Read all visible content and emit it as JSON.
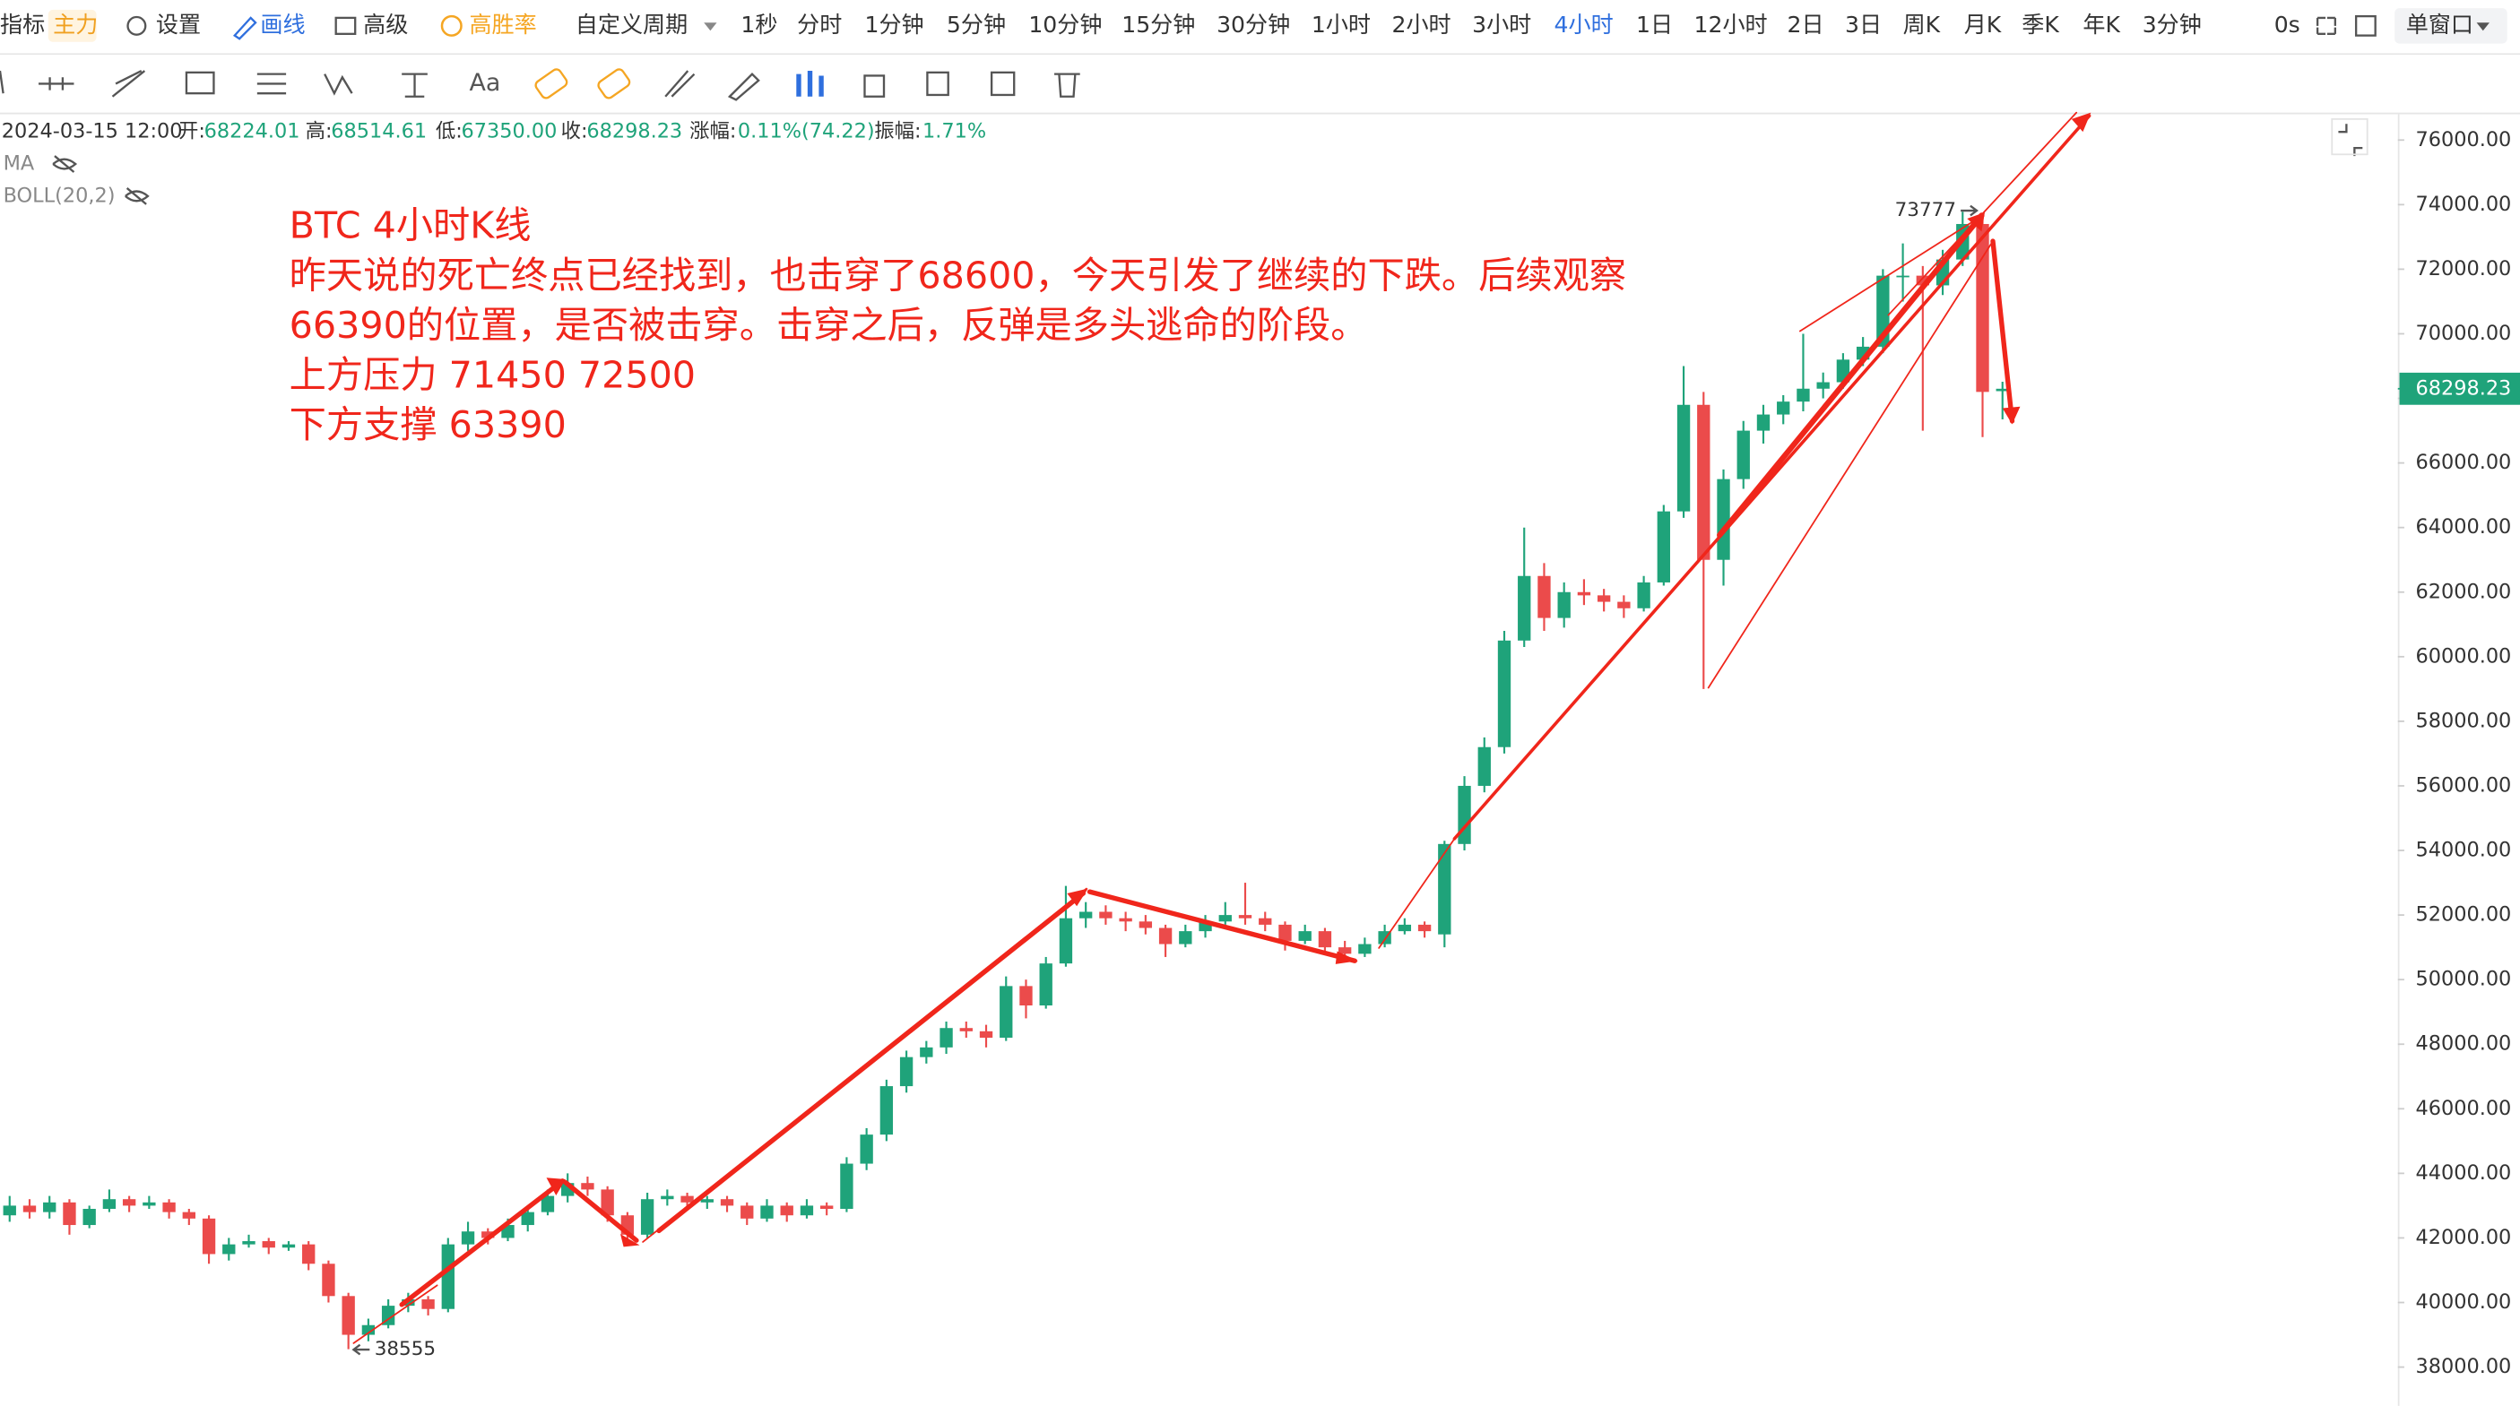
{
  "toolbar": {
    "indicator": "指标",
    "main": "主力",
    "settings": "设置",
    "draw": "画线",
    "advanced": "高级",
    "win_rate": "高胜率",
    "custom_period": "自定义周期",
    "periods": [
      "1秒",
      "分时",
      "1分钟",
      "5分钟",
      "10分钟",
      "15分钟",
      "30分钟",
      "1小时",
      "2小时",
      "3小时",
      "4小时",
      "1日",
      "12小时",
      "2日",
      "3日",
      "周K",
      "月K",
      "季K",
      "年K",
      "3分钟"
    ],
    "active_period": 10,
    "refresh": "0s",
    "window": "单窗口",
    "text_tool": "Aa"
  },
  "info": {
    "time": "2024-03-15 12:00",
    "open_label": "开:",
    "open": "68224.01",
    "high_label": "高:",
    "high": "68514.61",
    "low_label": "低:",
    "low": "67350.00",
    "close_label": "收:",
    "close": "68298.23",
    "change_label": "涨幅:",
    "change": "0.11%(74.22)",
    "amplitude_label": "振幅:",
    "amplitude": "1.71%"
  },
  "indicators": [
    "MA",
    "BOLL(20,2)"
  ],
  "chart_data": {
    "type": "candlestick",
    "up_color": "#1fa37a",
    "down_color": "#eb4b4b",
    "grid": false,
    "note": [
      "BTC 4小时K线",
      "昨天说的死亡终点已经找到，也击穿了68600，今天引发了继续的下跌。后续观察",
      "66390的位置，是否被击穿。击穿之后，反弹是多头逃命的阶段。",
      "上方压力 71450  72500",
      "下方支撑 63390"
    ],
    "ylim": [
      36800,
      76750
    ],
    "yticks": [
      {
        "value": 38000,
        "label": "38000.00"
      },
      {
        "value": 40000,
        "label": "40000.00"
      },
      {
        "value": 42000,
        "label": "42000.00"
      },
      {
        "value": 44000,
        "label": "44000.00"
      },
      {
        "value": 46000,
        "label": "46000.00"
      },
      {
        "value": 48000,
        "label": "48000.00"
      },
      {
        "value": 50000,
        "label": "50000.00"
      },
      {
        "value": 52000,
        "label": "52000.00"
      },
      {
        "value": 54000,
        "label": "54000.00"
      },
      {
        "value": 56000,
        "label": "56000.00"
      },
      {
        "value": 58000,
        "label": "58000.00"
      },
      {
        "value": 60000,
        "label": "60000.00"
      },
      {
        "value": 62000,
        "label": "62000.00"
      },
      {
        "value": 64000,
        "label": "64000.00"
      },
      {
        "value": 66000,
        "label": "66000.00"
      },
      {
        "value": 68000,
        "label": "68000.00"
      },
      {
        "value": 70000,
        "label": "70000.00"
      },
      {
        "value": 72000,
        "label": "72000.00"
      },
      {
        "value": 74000,
        "label": "74000.00"
      },
      {
        "value": 76000,
        "label": "76000.00"
      }
    ],
    "ohlc": [
      [
        42700,
        43300,
        42500,
        43000
      ],
      [
        43000,
        43200,
        42600,
        42800
      ],
      [
        42800,
        43300,
        42600,
        43100
      ],
      [
        43100,
        43200,
        42100,
        42400
      ],
      [
        42400,
        43000,
        42300,
        42900
      ],
      [
        42900,
        43500,
        42800,
        43200
      ],
      [
        43200,
        43300,
        42800,
        43000
      ],
      [
        43000,
        43300,
        42900,
        43100
      ],
      [
        43100,
        43200,
        42600,
        42800
      ],
      [
        42800,
        42900,
        42400,
        42600
      ],
      [
        42600,
        42700,
        41200,
        41500
      ],
      [
        41500,
        42000,
        41300,
        41800
      ],
      [
        41800,
        42100,
        41700,
        41900
      ],
      [
        41900,
        42000,
        41500,
        41700
      ],
      [
        41700,
        41900,
        41600,
        41800
      ],
      [
        41800,
        41900,
        41000,
        41200
      ],
      [
        41200,
        41300,
        40000,
        40200
      ],
      [
        40200,
        40300,
        38555,
        39000
      ],
      [
        39000,
        39500,
        38800,
        39300
      ],
      [
        39300,
        40100,
        39200,
        39900
      ],
      [
        39900,
        40300,
        39700,
        40100
      ],
      [
        40100,
        40200,
        39600,
        39800
      ],
      [
        39800,
        42000,
        39700,
        41800
      ],
      [
        41800,
        42500,
        41600,
        42200
      ],
      [
        42200,
        42300,
        41800,
        42000
      ],
      [
        42000,
        42600,
        41900,
        42400
      ],
      [
        42400,
        43000,
        42200,
        42800
      ],
      [
        42800,
        43500,
        42700,
        43300
      ],
      [
        43300,
        44000,
        43100,
        43700
      ],
      [
        43700,
        43900,
        43300,
        43500
      ],
      [
        43500,
        43600,
        42500,
        42700
      ],
      [
        42700,
        42800,
        41900,
        42100
      ],
      [
        42100,
        43400,
        42000,
        43200
      ],
      [
        43200,
        43500,
        43000,
        43300
      ],
      [
        43300,
        43400,
        42900,
        43100
      ],
      [
        43100,
        43300,
        42900,
        43200
      ],
      [
        43200,
        43300,
        42800,
        43000
      ],
      [
        43000,
        43100,
        42400,
        42600
      ],
      [
        42600,
        43200,
        42500,
        43000
      ],
      [
        43000,
        43100,
        42500,
        42700
      ],
      [
        42700,
        43200,
        42600,
        43000
      ],
      [
        43000,
        43100,
        42700,
        42900
      ],
      [
        42900,
        44500,
        42800,
        44300
      ],
      [
        44300,
        45400,
        44100,
        45200
      ],
      [
        45200,
        46900,
        45000,
        46700
      ],
      [
        46700,
        47800,
        46500,
        47600
      ],
      [
        47600,
        48100,
        47400,
        47900
      ],
      [
        47900,
        48700,
        47700,
        48500
      ],
      [
        48500,
        48700,
        48200,
        48400
      ],
      [
        48400,
        48600,
        47900,
        48200
      ],
      [
        48200,
        50100,
        48100,
        49800
      ],
      [
        49800,
        50000,
        48800,
        49200
      ],
      [
        49200,
        50700,
        49100,
        50500
      ],
      [
        50500,
        52900,
        50400,
        51900
      ],
      [
        51900,
        52400,
        51600,
        52100
      ],
      [
        52100,
        52300,
        51700,
        51900
      ],
      [
        51900,
        52100,
        51500,
        51800
      ],
      [
        51800,
        52000,
        51400,
        51600
      ],
      [
        51600,
        51700,
        50700,
        51100
      ],
      [
        51100,
        51700,
        51000,
        51500
      ],
      [
        51500,
        52000,
        51300,
        51800
      ],
      [
        51800,
        52400,
        51700,
        52000
      ],
      [
        52000,
        53000,
        51700,
        51900
      ],
      [
        51900,
        52100,
        51500,
        51700
      ],
      [
        51700,
        51800,
        50900,
        51200
      ],
      [
        51200,
        51700,
        51100,
        51500
      ],
      [
        51500,
        51600,
        50800,
        51000
      ],
      [
        51000,
        51200,
        50600,
        50800
      ],
      [
        50800,
        51300,
        50700,
        51100
      ],
      [
        51100,
        51700,
        51000,
        51500
      ],
      [
        51500,
        51900,
        51400,
        51700
      ],
      [
        51700,
        51800,
        51300,
        51500
      ],
      [
        51400,
        54300,
        51000,
        54200
      ],
      [
        54200,
        56300,
        54000,
        56000
      ],
      [
        56000,
        57500,
        55800,
        57200
      ],
      [
        57200,
        60800,
        57000,
        60500
      ],
      [
        60500,
        64000,
        60300,
        62500
      ],
      [
        62500,
        62900,
        60800,
        61200
      ],
      [
        61200,
        62300,
        60900,
        62000
      ],
      [
        62000,
        62400,
        61600,
        61900
      ],
      [
        61900,
        62100,
        61400,
        61700
      ],
      [
        61700,
        61900,
        61200,
        61500
      ],
      [
        61500,
        62500,
        61400,
        62300
      ],
      [
        62300,
        64700,
        62200,
        64500
      ],
      [
        64500,
        69000,
        64300,
        67800
      ],
      [
        67800,
        68200,
        59000,
        63000
      ],
      [
        63000,
        65800,
        62200,
        65500
      ],
      [
        65500,
        67300,
        65200,
        67000
      ],
      [
        67000,
        67800,
        66600,
        67500
      ],
      [
        67500,
        68100,
        67200,
        67900
      ],
      [
        67900,
        70000,
        67600,
        68300
      ],
      [
        68300,
        68800,
        68000,
        68500
      ],
      [
        68500,
        69400,
        68300,
        69200
      ],
      [
        69200,
        69900,
        69000,
        69600
      ],
      [
        69600,
        72000,
        69400,
        71800
      ],
      [
        71800,
        72800,
        71000,
        71800
      ],
      [
        71800,
        72100,
        67000,
        71500
      ],
      [
        71500,
        72600,
        71200,
        72300
      ],
      [
        72300,
        73777,
        72100,
        73400
      ],
      [
        73400,
        73600,
        66800,
        68200
      ],
      [
        68224.01,
        68514.61,
        67350,
        68298.23
      ]
    ]
  }
}
